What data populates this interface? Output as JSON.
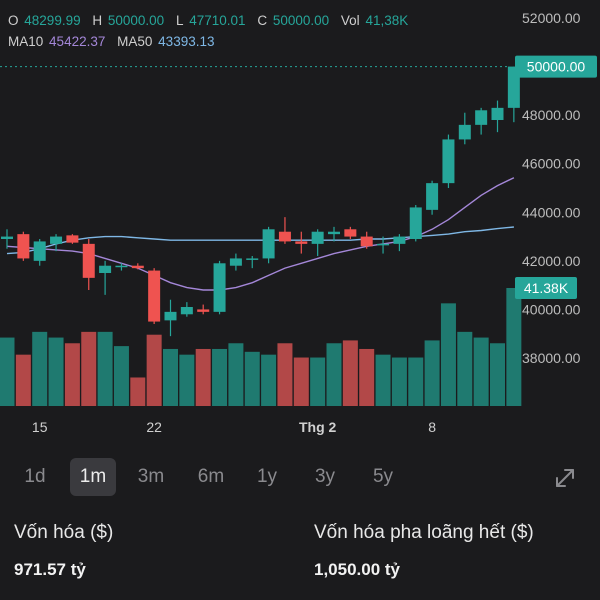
{
  "header": {
    "o_label": "O",
    "o_value": "48299.99",
    "h_label": "H",
    "h_value": "50000.00",
    "l_label": "L",
    "l_value": "47710.01",
    "c_label": "C",
    "c_value": "50000.00",
    "vol_label": "Vol",
    "vol_value": "41,38K",
    "ma10_label": "MA10",
    "ma10_value": "45422.37",
    "ma50_label": "MA50",
    "ma50_value": "43393.13"
  },
  "chart_data": {
    "type": "candlestick",
    "ylim": [
      36000,
      52500
    ],
    "y_ticks": [
      "52000.00",
      "48000.00",
      "46000.00",
      "44000.00",
      "42000.00",
      "40000.00",
      "38000.00"
    ],
    "y_tick_values": [
      52000,
      48000,
      46000,
      44000,
      42000,
      40000,
      38000
    ],
    "x_ticks": [
      {
        "label": "15",
        "index": 2
      },
      {
        "label": "22",
        "index": 9
      },
      {
        "label": "Thg 2",
        "index": 19
      },
      {
        "label": "8",
        "index": 26
      }
    ],
    "current_price_label": "50000.00",
    "current_price": 50000,
    "volume_label": "41.38K",
    "colors": {
      "up": "#26a69a",
      "down": "#ef5350",
      "up_vol": "#1f7a70",
      "down_vol": "#b24848",
      "ma10": "#a487d8",
      "ma50": "#7fb8e6",
      "badge": "#26a69a"
    },
    "candles": [
      {
        "o": 42900,
        "h": 43300,
        "l": 42500,
        "c": 43000
      },
      {
        "o": 43100,
        "h": 43200,
        "l": 42000,
        "c": 42100
      },
      {
        "o": 42000,
        "h": 42900,
        "l": 41800,
        "c": 42800
      },
      {
        "o": 42700,
        "h": 43100,
        "l": 42400,
        "c": 43000
      },
      {
        "o": 43050,
        "h": 43100,
        "l": 42700,
        "c": 42750
      },
      {
        "o": 42700,
        "h": 42900,
        "l": 40800,
        "c": 41300
      },
      {
        "o": 41500,
        "h": 42000,
        "l": 40600,
        "c": 41800
      },
      {
        "o": 41750,
        "h": 41900,
        "l": 41600,
        "c": 41800
      },
      {
        "o": 41800,
        "h": 41900,
        "l": 41650,
        "c": 41700
      },
      {
        "o": 41600,
        "h": 41700,
        "l": 39400,
        "c": 39500
      },
      {
        "o": 39550,
        "h": 40400,
        "l": 38900,
        "c": 39900
      },
      {
        "o": 39800,
        "h": 40300,
        "l": 39700,
        "c": 40100
      },
      {
        "o": 40000,
        "h": 40200,
        "l": 39800,
        "c": 39900
      },
      {
        "o": 39900,
        "h": 42000,
        "l": 39800,
        "c": 41900
      },
      {
        "o": 41800,
        "h": 42300,
        "l": 41600,
        "c": 42100
      },
      {
        "o": 42050,
        "h": 42200,
        "l": 41700,
        "c": 42100
      },
      {
        "o": 42100,
        "h": 43400,
        "l": 41900,
        "c": 43300
      },
      {
        "o": 43200,
        "h": 43800,
        "l": 42700,
        "c": 42800
      },
      {
        "o": 42800,
        "h": 43200,
        "l": 42300,
        "c": 42700
      },
      {
        "o": 42700,
        "h": 43300,
        "l": 42200,
        "c": 43200
      },
      {
        "o": 43100,
        "h": 43400,
        "l": 42800,
        "c": 43200
      },
      {
        "o": 43300,
        "h": 43400,
        "l": 42900,
        "c": 43000
      },
      {
        "o": 43000,
        "h": 43200,
        "l": 42500,
        "c": 42600
      },
      {
        "o": 42700,
        "h": 43000,
        "l": 42300,
        "c": 42700
      },
      {
        "o": 42700,
        "h": 43100,
        "l": 42400,
        "c": 43000
      },
      {
        "o": 42900,
        "h": 44300,
        "l": 42800,
        "c": 44200
      },
      {
        "o": 44100,
        "h": 45300,
        "l": 43900,
        "c": 45200
      },
      {
        "o": 45200,
        "h": 47200,
        "l": 45000,
        "c": 47000
      },
      {
        "o": 47000,
        "h": 48100,
        "l": 46800,
        "c": 47600
      },
      {
        "o": 47600,
        "h": 48300,
        "l": 47200,
        "c": 48200
      },
      {
        "o": 47800,
        "h": 48600,
        "l": 47300,
        "c": 48300
      },
      {
        "o": 48299.99,
        "h": 50000,
        "l": 47710.01,
        "c": 50000
      }
    ],
    "volumes": [
      24,
      18,
      26,
      24,
      22,
      26,
      26,
      21,
      10,
      25,
      20,
      18,
      20,
      20,
      22,
      19,
      18,
      22,
      17,
      17,
      22,
      23,
      20,
      18,
      17,
      17,
      23,
      36,
      26,
      24,
      22,
      41.38
    ],
    "ma10": [
      42600,
      42550,
      42500,
      42450,
      42400,
      42300,
      42100,
      41900,
      41700,
      41400,
      41100,
      40900,
      40800,
      40800,
      40900,
      41100,
      41400,
      41700,
      41900,
      42100,
      42300,
      42450,
      42600,
      42700,
      42800,
      43000,
      43300,
      43700,
      44200,
      44700,
      45100,
      45422.37
    ],
    "ma50": [
      42300,
      42350,
      42500,
      42700,
      42850,
      42950,
      43000,
      43000,
      42950,
      42900,
      42850,
      42850,
      42850,
      42850,
      42850,
      42850,
      42850,
      42850,
      42850,
      42850,
      42850,
      42850,
      42900,
      42900,
      42950,
      43000,
      43050,
      43100,
      43200,
      43250,
      43330,
      43393.13
    ]
  },
  "range_selector": {
    "options": [
      "1d",
      "1m",
      "3m",
      "6m",
      "1y",
      "3y",
      "5y"
    ],
    "selected": "1m"
  },
  "stats": {
    "market_cap_label": "Vốn hóa ($)",
    "market_cap_value": "971.57 tỷ",
    "fdv_label": "Vốn hóa pha loãng hết ($)",
    "fdv_value": "1,050.00 tỷ"
  }
}
